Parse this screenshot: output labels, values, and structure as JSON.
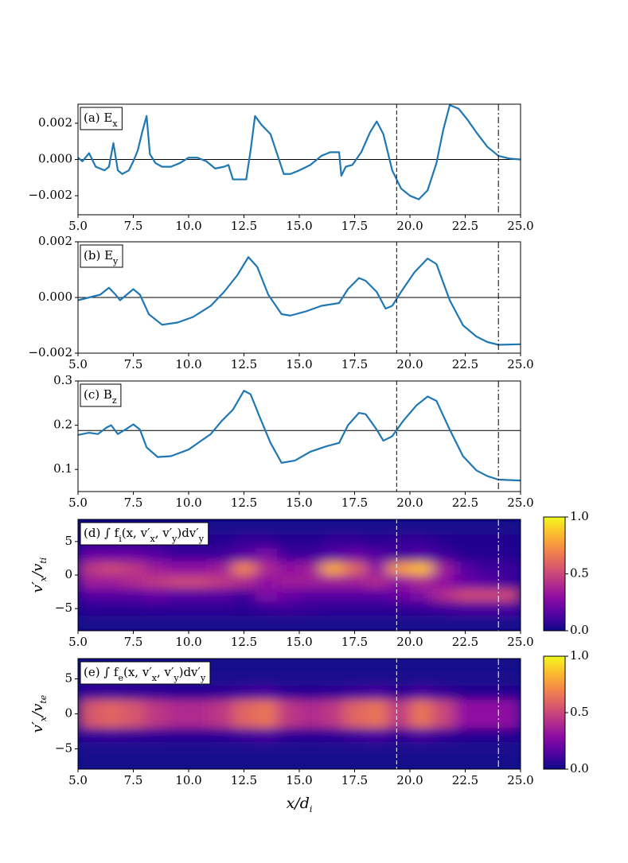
{
  "chart_data": [
    {
      "type": "line",
      "label": [
        "(a) E",
        "x"
      ],
      "color": "#1f77b4",
      "x": [
        5.0,
        5.2,
        5.5,
        5.8,
        6.2,
        6.4,
        6.6,
        6.8,
        7.0,
        7.3,
        7.5,
        7.7,
        7.9,
        8.1,
        8.25,
        8.5,
        8.8,
        9.2,
        9.6,
        10.0,
        10.4,
        10.8,
        11.2,
        11.6,
        11.8,
        12.0,
        12.3,
        12.6,
        12.8,
        13.0,
        13.3,
        13.7,
        14.0,
        14.3,
        14.6,
        15.0,
        15.5,
        16.0,
        16.4,
        16.8,
        16.9,
        17.1,
        17.4,
        17.8,
        18.2,
        18.5,
        18.8,
        19.2,
        19.6,
        20.0,
        20.4,
        20.8,
        21.2,
        21.5,
        21.8,
        22.2,
        22.6,
        23.0,
        23.5,
        24.0,
        24.5,
        25.0
      ],
      "values": [
        0.0001,
        -0.0001,
        0.00035,
        -0.0004,
        -0.0006,
        -0.0004,
        0.0009,
        -0.0006,
        -0.0008,
        -0.0006,
        -0.0001,
        0.0005,
        0.0015,
        0.0024,
        0.0003,
        -0.0002,
        -0.0004,
        -0.0004,
        -0.0002,
        0.0001,
        0.0001,
        -0.0001,
        -0.0005,
        -0.0004,
        -0.0003,
        -0.0011,
        -0.0011,
        -0.0011,
        0.0005,
        0.0024,
        0.0019,
        0.0014,
        0.0003,
        -0.0008,
        -0.0008,
        -0.0006,
        -0.0003,
        0.0002,
        0.0004,
        0.0004,
        -0.0009,
        -0.0004,
        -0.0003,
        0.0004,
        0.0015,
        0.0021,
        0.0014,
        -0.0006,
        -0.0016,
        -0.002,
        -0.0022,
        -0.0017,
        -0.0002,
        0.0016,
        0.003,
        0.0028,
        0.0022,
        0.0015,
        0.0007,
        0.0002,
        5e-05,
        0.0
      ],
      "xlim": [
        5,
        25
      ],
      "ylim": [
        -0.00305,
        0.00305
      ],
      "xticks": [
        {
          "value": 5,
          "label": "5.0"
        },
        7.5,
        {
          "value": 10,
          "label": "10.0"
        },
        12.5,
        {
          "value": 15,
          "label": "15.0"
        },
        17.5,
        {
          "value": 20,
          "label": "20.0"
        },
        22.5,
        {
          "value": 25,
          "label": "25.0"
        }
      ],
      "yticks": [
        {
          "value": -0.002,
          "label": "−0.002"
        },
        {
          "value": 0,
          "label": "0.000"
        },
        {
          "value": 0.002,
          "label": "0.002"
        }
      ],
      "hline": 0,
      "vlines": [
        19.4,
        24.0
      ]
    },
    {
      "type": "line",
      "label": [
        "(b) E",
        "y"
      ],
      "color": "#1f77b4",
      "x": [
        5.0,
        5.5,
        6.0,
        6.4,
        6.7,
        6.9,
        7.2,
        7.5,
        7.8,
        8.2,
        8.8,
        9.5,
        10.2,
        11.0,
        11.6,
        12.2,
        12.7,
        13.1,
        13.6,
        14.2,
        14.6,
        15.3,
        16.0,
        16.8,
        17.2,
        17.7,
        18.0,
        18.5,
        18.9,
        19.2,
        19.6,
        20.2,
        20.8,
        21.2,
        21.8,
        22.4,
        23.0,
        23.5,
        24.0,
        25.0
      ],
      "values": [
        -0.0001,
        0.0,
        0.0001,
        0.00035,
        0.0001,
        -0.0001,
        0.0001,
        0.0003,
        0.0001,
        -0.0006,
        -0.00098,
        -0.0009,
        -0.0007,
        -0.0003,
        0.0002,
        0.0008,
        0.00145,
        0.0011,
        0.0001,
        -0.0006,
        -0.00065,
        -0.0005,
        -0.0003,
        -0.0002,
        0.0003,
        0.0007,
        0.0006,
        0.0002,
        -0.0004,
        -0.0003,
        0.0002,
        0.0009,
        0.0014,
        0.0012,
        -0.0001,
        -0.001,
        -0.0014,
        -0.0016,
        -0.0017,
        -0.00168
      ],
      "xlim": [
        5,
        25
      ],
      "ylim": [
        -0.002,
        0.002
      ],
      "xticks": [
        {
          "value": 5,
          "label": "5.0"
        },
        7.5,
        {
          "value": 10,
          "label": "10.0"
        },
        12.5,
        {
          "value": 15,
          "label": "15.0"
        },
        17.5,
        {
          "value": 20,
          "label": "20.0"
        },
        22.5,
        {
          "value": 25,
          "label": "25.0"
        }
      ],
      "yticks": [
        {
          "value": -0.002,
          "label": "−0.002"
        },
        {
          "value": 0,
          "label": "0.000"
        },
        {
          "value": 0.002,
          "label": "0.002"
        }
      ],
      "hline": 0,
      "vlines": [
        19.4,
        24.0
      ]
    },
    {
      "type": "line",
      "label": [
        "(c) B",
        "z"
      ],
      "color": "#1f77b4",
      "x": [
        5.0,
        5.5,
        5.9,
        6.3,
        6.5,
        6.8,
        7.2,
        7.5,
        7.8,
        8.1,
        8.6,
        9.2,
        10.0,
        11.0,
        11.5,
        12.0,
        12.5,
        12.8,
        13.2,
        13.7,
        14.2,
        14.8,
        15.5,
        16.2,
        16.8,
        17.2,
        17.7,
        18.0,
        18.5,
        18.8,
        19.2,
        19.7,
        20.3,
        20.8,
        21.2,
        21.8,
        22.4,
        23.0,
        23.5,
        24.0,
        25.0
      ],
      "values": [
        0.178,
        0.183,
        0.18,
        0.195,
        0.2,
        0.18,
        0.192,
        0.202,
        0.19,
        0.15,
        0.128,
        0.13,
        0.145,
        0.18,
        0.21,
        0.235,
        0.278,
        0.27,
        0.22,
        0.16,
        0.115,
        0.12,
        0.14,
        0.152,
        0.16,
        0.2,
        0.228,
        0.225,
        0.19,
        0.165,
        0.175,
        0.21,
        0.245,
        0.265,
        0.255,
        0.19,
        0.13,
        0.098,
        0.085,
        0.077,
        0.075
      ],
      "xlim": [
        5,
        25
      ],
      "ylim": [
        0.05,
        0.3
      ],
      "xticks": [
        {
          "value": 5,
          "label": "5.0"
        },
        7.5,
        {
          "value": 10,
          "label": "10.0"
        },
        12.5,
        {
          "value": 15,
          "label": "15.0"
        },
        17.5,
        {
          "value": 20,
          "label": "20.0"
        },
        22.5,
        {
          "value": 25,
          "label": "25.0"
        }
      ],
      "yticks": [
        0.1,
        0.2,
        0.3
      ],
      "hline": 0.188,
      "vlines": [
        19.4,
        24.0
      ]
    },
    {
      "type": "heatmap",
      "label": [
        "(d) ∫ f",
        "i",
        "(x, v′",
        "x",
        ", v′",
        "y",
        ")dv′",
        "y"
      ],
      "ylabel": [
        "v′",
        "x",
        "/v",
        "ti"
      ],
      "colormap": "plasma",
      "zlim": [
        0,
        1
      ],
      "zticks": [
        {
          "value": 0,
          "label": "0.0"
        },
        0.5,
        {
          "value": 1,
          "label": "1.0"
        }
      ],
      "x": [
        5.5,
        6.5,
        7.5,
        8.5,
        9.5,
        10.5,
        11.5,
        12.5,
        13.5,
        14.5,
        15.5,
        16.5,
        17.5,
        18.5,
        19.5,
        20.5,
        21.5,
        22.5,
        23.5,
        24.5
      ],
      "y": [
        7,
        5,
        3,
        1,
        -1,
        -3,
        -5,
        -7
      ],
      "z": [
        [
          0.03,
          0.03,
          0.03,
          0.03,
          0.03,
          0.03,
          0.03,
          0.03,
          0.03,
          0.03,
          0.03,
          0.03,
          0.03,
          0.03,
          0.03,
          0.03,
          0.03,
          0.03,
          0.03,
          0.03
        ],
        [
          0.05,
          0.05,
          0.05,
          0.05,
          0.04,
          0.04,
          0.05,
          0.08,
          0.08,
          0.05,
          0.05,
          0.08,
          0.08,
          0.06,
          0.08,
          0.08,
          0.05,
          0.04,
          0.04,
          0.04
        ],
        [
          0.2,
          0.2,
          0.2,
          0.15,
          0.1,
          0.1,
          0.1,
          0.15,
          0.25,
          0.1,
          0.1,
          0.15,
          0.2,
          0.15,
          0.1,
          0.15,
          0.1,
          0.05,
          0.05,
          0.05
        ],
        [
          0.45,
          0.5,
          0.45,
          0.35,
          0.3,
          0.3,
          0.35,
          0.7,
          0.4,
          0.3,
          0.35,
          0.8,
          0.6,
          0.3,
          0.75,
          0.85,
          0.35,
          0.15,
          0.1,
          0.1
        ],
        [
          0.35,
          0.35,
          0.4,
          0.45,
          0.5,
          0.5,
          0.45,
          0.4,
          0.3,
          0.35,
          0.35,
          0.35,
          0.35,
          0.4,
          0.3,
          0.4,
          0.3,
          0.2,
          0.15,
          0.1
        ],
        [
          0.15,
          0.15,
          0.15,
          0.2,
          0.15,
          0.15,
          0.15,
          0.1,
          0.25,
          0.2,
          0.15,
          0.15,
          0.15,
          0.15,
          0.2,
          0.25,
          0.4,
          0.5,
          0.5,
          0.5
        ],
        [
          0.06,
          0.06,
          0.06,
          0.07,
          0.07,
          0.07,
          0.07,
          0.06,
          0.08,
          0.1,
          0.08,
          0.07,
          0.07,
          0.07,
          0.07,
          0.08,
          0.1,
          0.12,
          0.12,
          0.12
        ],
        [
          0.03,
          0.03,
          0.03,
          0.03,
          0.03,
          0.03,
          0.03,
          0.03,
          0.03,
          0.03,
          0.03,
          0.03,
          0.03,
          0.03,
          0.03,
          0.03,
          0.03,
          0.03,
          0.03,
          0.03
        ]
      ],
      "xlim": [
        5,
        25
      ],
      "ylim": [
        -8.3,
        8.3
      ],
      "xticks": [
        {
          "value": 5,
          "label": "5.0"
        },
        7.5,
        {
          "value": 10,
          "label": "10.0"
        },
        12.5,
        {
          "value": 15,
          "label": "15.0"
        },
        17.5,
        {
          "value": 20,
          "label": "20.0"
        },
        22.5,
        {
          "value": 25,
          "label": "25.0"
        }
      ],
      "yticks": [
        {
          "value": -5,
          "label": "−5"
        },
        0,
        5
      ],
      "vlines": [
        19.4,
        24.0
      ]
    },
    {
      "type": "heatmap",
      "label": [
        "(e) ∫ f",
        "e",
        "(x, v′",
        "x",
        ", v′",
        "y",
        ")dv′",
        "y"
      ],
      "ylabel": [
        "v′",
        "x",
        "/v",
        "te"
      ],
      "xlabel": [
        "x/d",
        "i"
      ],
      "colormap": "plasma",
      "zlim": [
        0,
        1
      ],
      "zticks": [
        {
          "value": 0,
          "label": "0.0"
        },
        0.5,
        {
          "value": 1,
          "label": "1.0"
        }
      ],
      "x": [
        5.5,
        6.5,
        7.5,
        8.5,
        9.5,
        10.5,
        11.5,
        12.5,
        13.5,
        14.5,
        15.5,
        16.5,
        17.5,
        18.5,
        19.5,
        20.5,
        21.5,
        22.5,
        23.5,
        24.5
      ],
      "y": [
        7,
        5,
        3,
        1,
        -1,
        -3,
        -5,
        -7
      ],
      "z": [
        [
          0.02,
          0.02,
          0.02,
          0.02,
          0.02,
          0.02,
          0.02,
          0.02,
          0.02,
          0.02,
          0.02,
          0.02,
          0.02,
          0.02,
          0.02,
          0.02,
          0.02,
          0.02,
          0.02,
          0.02
        ],
        [
          0.03,
          0.03,
          0.03,
          0.03,
          0.03,
          0.03,
          0.03,
          0.03,
          0.03,
          0.03,
          0.03,
          0.03,
          0.03,
          0.03,
          0.03,
          0.03,
          0.03,
          0.03,
          0.03,
          0.03
        ],
        [
          0.08,
          0.09,
          0.08,
          0.07,
          0.06,
          0.06,
          0.07,
          0.1,
          0.12,
          0.07,
          0.06,
          0.07,
          0.1,
          0.12,
          0.07,
          0.12,
          0.08,
          0.05,
          0.05,
          0.05
        ],
        [
          0.55,
          0.6,
          0.55,
          0.45,
          0.4,
          0.4,
          0.45,
          0.6,
          0.65,
          0.45,
          0.4,
          0.45,
          0.6,
          0.65,
          0.45,
          0.65,
          0.5,
          0.3,
          0.3,
          0.3
        ],
        [
          0.55,
          0.6,
          0.55,
          0.45,
          0.4,
          0.4,
          0.45,
          0.6,
          0.65,
          0.45,
          0.4,
          0.45,
          0.6,
          0.65,
          0.45,
          0.65,
          0.5,
          0.3,
          0.3,
          0.3
        ],
        [
          0.08,
          0.09,
          0.08,
          0.07,
          0.06,
          0.06,
          0.07,
          0.1,
          0.12,
          0.07,
          0.06,
          0.07,
          0.1,
          0.12,
          0.07,
          0.12,
          0.08,
          0.05,
          0.05,
          0.05
        ],
        [
          0.03,
          0.03,
          0.03,
          0.03,
          0.03,
          0.03,
          0.03,
          0.03,
          0.03,
          0.03,
          0.03,
          0.03,
          0.03,
          0.03,
          0.03,
          0.03,
          0.03,
          0.03,
          0.03,
          0.03
        ],
        [
          0.02,
          0.02,
          0.02,
          0.02,
          0.02,
          0.02,
          0.02,
          0.02,
          0.02,
          0.02,
          0.02,
          0.02,
          0.02,
          0.02,
          0.02,
          0.02,
          0.02,
          0.02,
          0.02,
          0.02
        ]
      ],
      "xlim": [
        5,
        25
      ],
      "ylim": [
        -7.9,
        7.9
      ],
      "xticks": [
        {
          "value": 5,
          "label": "5.0"
        },
        7.5,
        {
          "value": 10,
          "label": "10.0"
        },
        12.5,
        {
          "value": 15,
          "label": "15.0"
        },
        17.5,
        {
          "value": 20,
          "label": "20.0"
        },
        22.5,
        {
          "value": 25,
          "label": "25.0"
        }
      ],
      "yticks": [
        {
          "value": -5,
          "label": "−5"
        },
        0,
        5
      ],
      "vlines": [
        19.4,
        24.0
      ]
    }
  ]
}
